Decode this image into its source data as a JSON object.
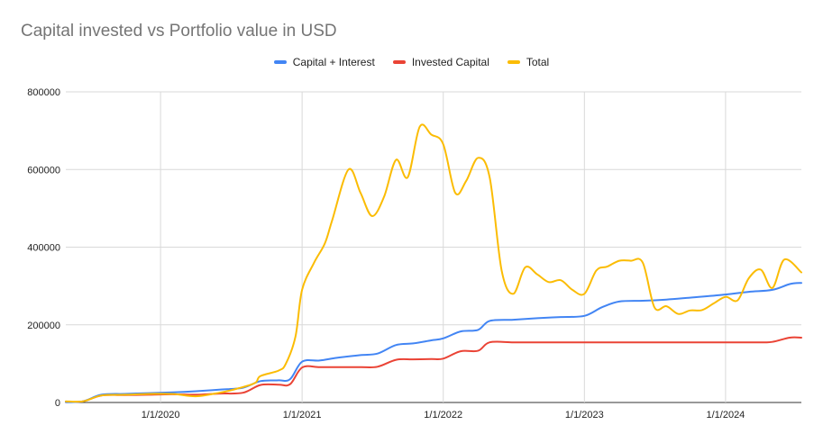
{
  "chart_data": {
    "type": "line",
    "title": "Capital invested vs Portfolio value in USD",
    "xlabel": "",
    "ylabel": "",
    "xlim": [
      "2019-05-01",
      "2024-07-15"
    ],
    "ylim": [
      0,
      800000
    ],
    "y_ticks": [
      0,
      200000,
      400000,
      600000,
      800000
    ],
    "y_tick_labels": [
      "0",
      "200000",
      "400000",
      "600000",
      "800000"
    ],
    "x_ticks": [
      "2020-01-01",
      "2021-01-01",
      "2022-01-01",
      "2023-01-01",
      "2024-01-01"
    ],
    "x_tick_labels": [
      "1/1/2020",
      "1/1/2021",
      "1/1/2022",
      "1/1/2023",
      "1/1/2024"
    ],
    "grid": true,
    "legend_position": "top-center",
    "series": [
      {
        "name": "Capital + Interest",
        "color": "#4285F4",
        "points": [
          [
            "2019-05-01",
            1000
          ],
          [
            "2019-06-15",
            3000
          ],
          [
            "2019-08-01",
            20000
          ],
          [
            "2019-10-01",
            22000
          ],
          [
            "2019-12-01",
            24000
          ],
          [
            "2020-02-01",
            26000
          ],
          [
            "2020-04-01",
            29000
          ],
          [
            "2020-06-01",
            33000
          ],
          [
            "2020-08-01",
            38000
          ],
          [
            "2020-09-15",
            55000
          ],
          [
            "2020-11-01",
            57000
          ],
          [
            "2020-12-01",
            60000
          ],
          [
            "2021-01-01",
            105000
          ],
          [
            "2021-02-15",
            108000
          ],
          [
            "2021-04-01",
            115000
          ],
          [
            "2021-06-01",
            122000
          ],
          [
            "2021-07-15",
            126000
          ],
          [
            "2021-09-01",
            148000
          ],
          [
            "2021-10-15",
            152000
          ],
          [
            "2021-12-01",
            160000
          ],
          [
            "2022-01-01",
            165000
          ],
          [
            "2022-02-15",
            183000
          ],
          [
            "2022-04-01",
            187000
          ],
          [
            "2022-05-01",
            210000
          ],
          [
            "2022-07-01",
            213000
          ],
          [
            "2022-09-01",
            217000
          ],
          [
            "2022-11-01",
            220000
          ],
          [
            "2023-01-01",
            223000
          ],
          [
            "2023-02-15",
            245000
          ],
          [
            "2023-04-01",
            260000
          ],
          [
            "2023-06-01",
            262000
          ],
          [
            "2023-08-01",
            265000
          ],
          [
            "2023-10-01",
            270000
          ],
          [
            "2024-01-01",
            278000
          ],
          [
            "2024-03-01",
            285000
          ],
          [
            "2024-05-01",
            290000
          ],
          [
            "2024-06-15",
            305000
          ],
          [
            "2024-07-15",
            308000
          ]
        ]
      },
      {
        "name": "Invested Capital",
        "color": "#EA4335",
        "points": [
          [
            "2019-05-01",
            1000
          ],
          [
            "2019-06-15",
            3000
          ],
          [
            "2019-08-01",
            18000
          ],
          [
            "2019-10-01",
            19000
          ],
          [
            "2019-12-01",
            20000
          ],
          [
            "2020-02-01",
            21000
          ],
          [
            "2020-04-01",
            20000
          ],
          [
            "2020-06-01",
            23000
          ],
          [
            "2020-08-01",
            25000
          ],
          [
            "2020-09-15",
            45000
          ],
          [
            "2020-11-01",
            46000
          ],
          [
            "2020-12-01",
            47000
          ],
          [
            "2021-01-01",
            90000
          ],
          [
            "2021-02-15",
            91000
          ],
          [
            "2021-04-01",
            91000
          ],
          [
            "2021-06-01",
            91000
          ],
          [
            "2021-07-15",
            92000
          ],
          [
            "2021-09-01",
            110000
          ],
          [
            "2021-10-15",
            111000
          ],
          [
            "2021-12-01",
            112000
          ],
          [
            "2022-01-01",
            113000
          ],
          [
            "2022-02-15",
            132000
          ],
          [
            "2022-04-01",
            133000
          ],
          [
            "2022-05-01",
            155000
          ],
          [
            "2022-07-01",
            155000
          ],
          [
            "2022-09-01",
            155000
          ],
          [
            "2022-11-01",
            155000
          ],
          [
            "2023-01-01",
            155000
          ],
          [
            "2023-04-01",
            155000
          ],
          [
            "2023-07-01",
            155000
          ],
          [
            "2023-10-01",
            155000
          ],
          [
            "2024-01-01",
            155000
          ],
          [
            "2024-04-01",
            155000
          ],
          [
            "2024-05-01",
            156000
          ],
          [
            "2024-06-15",
            167000
          ],
          [
            "2024-07-15",
            167000
          ]
        ]
      },
      {
        "name": "Total",
        "color": "#FBBC04",
        "points": [
          [
            "2019-05-01",
            3000
          ],
          [
            "2019-06-15",
            3000
          ],
          [
            "2019-08-01",
            18000
          ],
          [
            "2019-10-01",
            20000
          ],
          [
            "2019-12-01",
            22000
          ],
          [
            "2020-02-01",
            22000
          ],
          [
            "2020-04-01",
            16000
          ],
          [
            "2020-06-01",
            25000
          ],
          [
            "2020-07-15",
            35000
          ],
          [
            "2020-09-01",
            50000
          ],
          [
            "2020-09-15",
            68000
          ],
          [
            "2020-11-01",
            82000
          ],
          [
            "2020-11-20",
            100000
          ],
          [
            "2020-12-15",
            170000
          ],
          [
            "2021-01-01",
            290000
          ],
          [
            "2021-02-01",
            360000
          ],
          [
            "2021-03-01",
            410000
          ],
          [
            "2021-03-20",
            470000
          ],
          [
            "2021-05-01",
            600000
          ],
          [
            "2021-06-01",
            540000
          ],
          [
            "2021-07-01",
            480000
          ],
          [
            "2021-08-01",
            530000
          ],
          [
            "2021-09-01",
            625000
          ],
          [
            "2021-10-01",
            580000
          ],
          [
            "2021-11-01",
            710000
          ],
          [
            "2021-12-01",
            690000
          ],
          [
            "2022-01-01",
            665000
          ],
          [
            "2022-02-01",
            540000
          ],
          [
            "2022-03-01",
            570000
          ],
          [
            "2022-04-01",
            630000
          ],
          [
            "2022-05-01",
            580000
          ],
          [
            "2022-06-01",
            340000
          ],
          [
            "2022-07-01",
            280000
          ],
          [
            "2022-08-01",
            348000
          ],
          [
            "2022-09-01",
            330000
          ],
          [
            "2022-10-01",
            310000
          ],
          [
            "2022-11-01",
            315000
          ],
          [
            "2022-12-01",
            290000
          ],
          [
            "2023-01-01",
            280000
          ],
          [
            "2023-02-01",
            340000
          ],
          [
            "2023-03-01",
            350000
          ],
          [
            "2023-04-01",
            365000
          ],
          [
            "2023-05-01",
            365000
          ],
          [
            "2023-06-01",
            360000
          ],
          [
            "2023-07-01",
            245000
          ],
          [
            "2023-08-01",
            248000
          ],
          [
            "2023-09-01",
            228000
          ],
          [
            "2023-10-01",
            237000
          ],
          [
            "2023-11-01",
            238000
          ],
          [
            "2023-12-01",
            255000
          ],
          [
            "2024-01-01",
            272000
          ],
          [
            "2024-02-01",
            263000
          ],
          [
            "2024-03-01",
            320000
          ],
          [
            "2024-04-01",
            342000
          ],
          [
            "2024-05-01",
            295000
          ],
          [
            "2024-06-01",
            368000
          ],
          [
            "2024-07-15",
            335000
          ]
        ]
      }
    ]
  }
}
